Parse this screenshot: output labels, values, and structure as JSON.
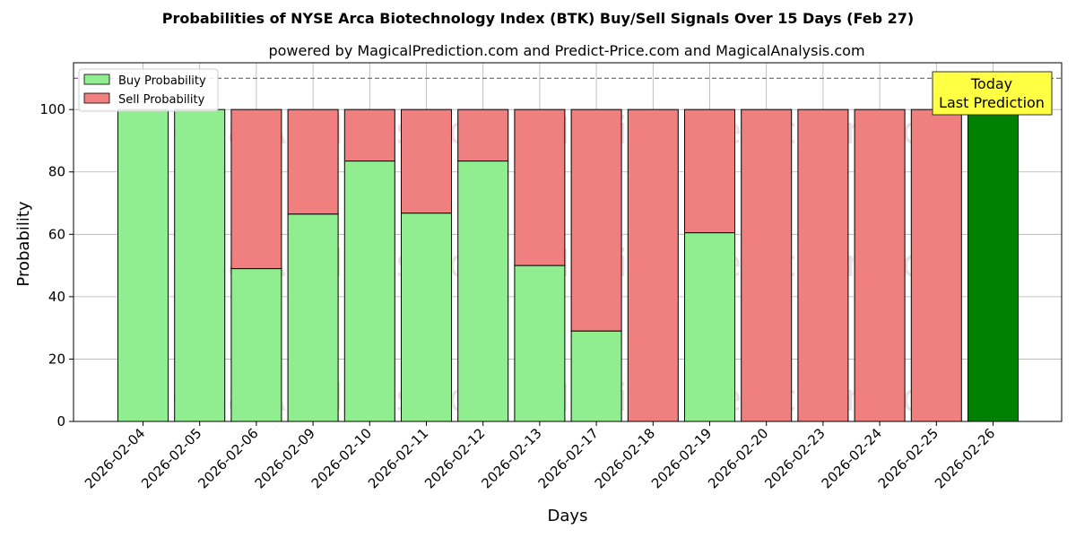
{
  "chart_data": {
    "type": "bar",
    "stacked": true,
    "title": "Probabilities of NYSE Arca Biotechnology Index (BTK) Buy/Sell Signals Over 15 Days (Feb 27)",
    "subtitle": "powered by MagicalPrediction.com and Predict-Price.com and MagicalAnalysis.com",
    "xlabel": "Days",
    "ylabel": "Probability",
    "ylim": [
      0,
      115
    ],
    "yticks": [
      0,
      20,
      40,
      60,
      80,
      100
    ],
    "reference_line": 110,
    "grid": true,
    "legend_position": "top-left",
    "categories": [
      "2026-02-04",
      "2026-02-05",
      "2026-02-06",
      "2026-02-09",
      "2026-02-10",
      "2026-02-11",
      "2026-02-12",
      "2026-02-13",
      "2026-02-17",
      "2026-02-18",
      "2026-02-19",
      "2026-02-20",
      "2026-02-23",
      "2026-02-24",
      "2026-02-25",
      "2026-02-26"
    ],
    "series": [
      {
        "name": "Buy Probability",
        "color": "#90ee90",
        "values": [
          100,
          100,
          49,
          66.5,
          83.5,
          66.8,
          83.5,
          50,
          29,
          0,
          60.5,
          0,
          0,
          0,
          0,
          100
        ]
      },
      {
        "name": "Sell Probability",
        "color": "#f08080",
        "values": [
          0,
          0,
          51,
          33.5,
          16.5,
          33.2,
          16.5,
          50,
          71,
          100,
          39.5,
          100,
          100,
          100,
          100,
          0
        ]
      }
    ],
    "highlight": {
      "index": 15,
      "color": "#008000"
    },
    "annotation": {
      "line1": "Today",
      "line2": "Last Prediction",
      "color": "#ffff44"
    },
    "watermarks": [
      "MagicalAnalysis.com",
      "MagicalPrediction.com"
    ]
  }
}
